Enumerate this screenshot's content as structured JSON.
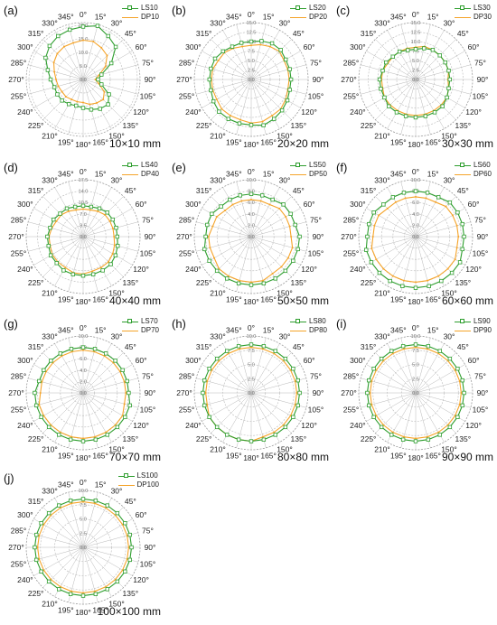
{
  "colors": {
    "ls": "#2e9e2e",
    "dp": "#f5a42a",
    "grid": "#b8b8b8",
    "text": "#222222"
  },
  "angle_labels": [
    "0°",
    "15°",
    "30°",
    "45°",
    "60°",
    "75°",
    "90°",
    "105°",
    "120°",
    "135°",
    "150°",
    "165°",
    "180°",
    "195°",
    "210°",
    "225°",
    "240°",
    "255°",
    "270°",
    "285°",
    "300°",
    "315°",
    "330°",
    "345°"
  ],
  "chart_data": [
    {
      "type": "polar-line",
      "panel_label": "(a)",
      "size_label": "10×10 mm",
      "r_ticks": [
        "0.0",
        "5.0",
        "10.0",
        "15.0",
        "20.0"
      ],
      "rmax": 21,
      "angles_deg": [
        0,
        15,
        30,
        45,
        60,
        75,
        90,
        105,
        120,
        135,
        150,
        165,
        180,
        195,
        210,
        225,
        240,
        255,
        270,
        285,
        300,
        315,
        330,
        345
      ],
      "series": [
        {
          "name": "LS10",
          "values": [
            19.5,
            20.5,
            18.5,
            17,
            12,
            7,
            5.5,
            7,
            11,
            13,
            12.5,
            11.5,
            10.5,
            10,
            10.5,
            11,
            11,
            11,
            12,
            13.5,
            16,
            17.5,
            18.5,
            19
          ]
        },
        {
          "name": "DP10",
          "values": [
            14.5,
            14.5,
            13.5,
            12.5,
            9.5,
            6,
            4.5,
            6,
            9,
            10.5,
            10,
            9.5,
            8.5,
            8.5,
            8.5,
            9,
            9,
            9.5,
            10,
            11,
            12.5,
            13.5,
            14,
            14
          ]
        }
      ]
    },
    {
      "type": "polar-line",
      "panel_label": "(b)",
      "size_label": "20×20 mm",
      "r_ticks": [
        "0.0",
        "2.5",
        "5.0",
        "7.5",
        "10.0",
        "12.5",
        "15.0"
      ],
      "rmax": 15,
      "angles_deg": [
        0,
        15,
        30,
        45,
        60,
        75,
        90,
        105,
        120,
        135,
        150,
        165,
        180,
        195,
        210,
        225,
        240,
        255,
        270,
        285,
        300,
        315,
        330,
        345
      ],
      "series": [
        {
          "name": "LS20",
          "values": [
            10,
            10.5,
            11,
            11,
            10.5,
            10.5,
            10.5,
            10.5,
            11,
            11.5,
            12,
            12.5,
            12,
            12,
            12,
            12,
            11.5,
            11,
            11,
            11,
            11,
            10.5,
            10,
            10
          ]
        },
        {
          "name": "DP20",
          "values": [
            9,
            9.5,
            10,
            10.5,
            10,
            10,
            10,
            10,
            10.5,
            11,
            11,
            11.5,
            11.5,
            11,
            11,
            11,
            10.5,
            10.5,
            10.5,
            10.5,
            10,
            10,
            9.5,
            9
          ]
        }
      ]
    },
    {
      "type": "polar-line",
      "panel_label": "(c)",
      "size_label": "30×30 mm",
      "r_ticks": [
        "0.0",
        "2.5",
        "5.0",
        "7.5",
        "10.0",
        "12.5",
        "15.0"
      ],
      "rmax": 15,
      "angles_deg": [
        0,
        15,
        30,
        45,
        60,
        75,
        90,
        105,
        120,
        135,
        150,
        165,
        180,
        195,
        210,
        225,
        240,
        255,
        270,
        285,
        300,
        315,
        330,
        345
      ],
      "series": [
        {
          "name": "LS30",
          "values": [
            8,
            8.5,
            9,
            9,
            9,
            9,
            9,
            9,
            9.5,
            10,
            10,
            10,
            10,
            10,
            10,
            10,
            9.5,
            9.5,
            9.5,
            9,
            9,
            8.5,
            8.5,
            8
          ]
        },
        {
          "name": "DP30",
          "values": [
            8.5,
            9,
            9,
            9,
            9,
            9,
            8.5,
            9,
            9.5,
            9.5,
            9.5,
            9.5,
            9.5,
            9.5,
            9.5,
            9.5,
            9.5,
            9,
            9,
            9,
            8.5,
            8.5,
            8.5,
            8.5
          ]
        }
      ]
    },
    {
      "type": "polar-line",
      "panel_label": "(d)",
      "size_label": "40×40 mm",
      "r_ticks": [
        "0.0",
        "3.5",
        "7.0",
        "10.5",
        "14.0",
        "17.5"
      ],
      "rmax": 17.5,
      "angles_deg": [
        0,
        15,
        30,
        45,
        60,
        75,
        90,
        105,
        120,
        135,
        150,
        165,
        180,
        195,
        210,
        225,
        240,
        255,
        270,
        285,
        300,
        315,
        330,
        345
      ],
      "series": [
        {
          "name": "LS40",
          "values": [
            9.5,
            9.5,
            10,
            10.5,
            10.5,
            10.5,
            10.5,
            11,
            11.5,
            12,
            12,
            12,
            12,
            12,
            12,
            11.5,
            11.5,
            11,
            11,
            10.5,
            10.5,
            10,
            10,
            9.5
          ]
        },
        {
          "name": "DP40",
          "values": [
            8.5,
            8.5,
            9,
            9.5,
            9.5,
            9.5,
            9.5,
            10,
            10.5,
            11,
            11,
            11,
            11.5,
            11.5,
            11,
            11,
            11,
            10.5,
            10.5,
            10,
            9.5,
            9.5,
            9,
            8.5
          ]
        }
      ]
    },
    {
      "type": "polar-line",
      "panel_label": "(e)",
      "size_label": "50×50 mm",
      "r_ticks": [
        "0.0",
        "2.0",
        "4.0",
        "6.0",
        "8.0",
        "10.0"
      ],
      "rmax": 10,
      "angles_deg": [
        0,
        15,
        30,
        45,
        60,
        75,
        90,
        105,
        120,
        135,
        150,
        165,
        180,
        195,
        210,
        225,
        240,
        255,
        270,
        285,
        300,
        315,
        330,
        345
      ],
      "series": [
        {
          "name": "LS50",
          "values": [
            7.5,
            7.5,
            7.5,
            8,
            8,
            8,
            8.5,
            8.5,
            8.5,
            8.5,
            8.5,
            8.5,
            8.5,
            8.5,
            8.5,
            8.5,
            8.5,
            8.5,
            8,
            8,
            8,
            7.5,
            7.5,
            7.5
          ]
        },
        {
          "name": "DP50",
          "values": [
            6.5,
            6.5,
            6.5,
            7,
            7,
            7,
            7,
            7.5,
            7.5,
            7.5,
            7.5,
            8,
            8,
            8,
            8,
            8,
            7.5,
            7.5,
            7.5,
            7,
            7,
            6.5,
            6.5,
            6.5
          ]
        }
      ]
    },
    {
      "type": "polar-line",
      "panel_label": "(f)",
      "size_label": "60×60 mm",
      "r_ticks": [
        "0.0",
        "2.0",
        "4.0",
        "6.0",
        "8.0",
        "10.0"
      ],
      "rmax": 10,
      "angles_deg": [
        0,
        15,
        30,
        45,
        60,
        75,
        90,
        105,
        120,
        135,
        150,
        165,
        180,
        195,
        210,
        225,
        240,
        255,
        270,
        285,
        300,
        315,
        330,
        345
      ],
      "series": [
        {
          "name": "LS60",
          "values": [
            8,
            8,
            8,
            8.5,
            8.5,
            8.5,
            8.5,
            8.5,
            9,
            9,
            9,
            9,
            9,
            9,
            9,
            9,
            9,
            9,
            8.5,
            8.5,
            8.5,
            8,
            8,
            8
          ]
        },
        {
          "name": "DP60",
          "values": [
            7,
            7,
            7,
            7.5,
            7.5,
            7.5,
            7.5,
            7.5,
            8,
            8,
            8,
            8,
            8,
            8,
            8,
            8,
            8,
            8,
            7.5,
            7.5,
            7.5,
            7,
            7,
            7
          ]
        }
      ]
    },
    {
      "type": "polar-line",
      "panel_label": "(g)",
      "size_label": "70×70 mm",
      "r_ticks": [
        "0.0",
        "2.0",
        "4.0",
        "6.0",
        "8.0",
        "10.0"
      ],
      "rmax": 10,
      "angles_deg": [
        0,
        15,
        30,
        45,
        60,
        75,
        90,
        105,
        120,
        135,
        150,
        165,
        180,
        195,
        210,
        225,
        240,
        255,
        270,
        285,
        300,
        315,
        330,
        345
      ],
      "series": [
        {
          "name": "LS70",
          "values": [
            8,
            8,
            8,
            8,
            8,
            8,
            8,
            8.5,
            8.5,
            8.5,
            8.5,
            8.5,
            8.5,
            8.5,
            8.5,
            8.5,
            8.5,
            8.5,
            8.5,
            8,
            8,
            8,
            8,
            8
          ]
        },
        {
          "name": "DP70",
          "values": [
            7.5,
            7.5,
            7.5,
            7.5,
            7.5,
            7.5,
            7.5,
            7.5,
            8,
            8,
            8,
            8,
            8,
            8,
            8,
            8,
            8,
            8,
            7.5,
            7.5,
            7.5,
            7.5,
            7.5,
            7.5
          ]
        }
      ]
    },
    {
      "type": "polar-line",
      "panel_label": "(h)",
      "size_label": "80×80 mm",
      "r_ticks": [
        "0.0",
        "2.5",
        "5.0",
        "7.5",
        "10.0"
      ],
      "rmax": 10,
      "angles_deg": [
        0,
        15,
        30,
        45,
        60,
        75,
        90,
        105,
        120,
        135,
        150,
        165,
        180,
        195,
        210,
        225,
        240,
        255,
        270,
        285,
        300,
        315,
        330,
        345
      ],
      "series": [
        {
          "name": "LS80",
          "values": [
            8.5,
            8.5,
            8.5,
            8.5,
            8.5,
            8.5,
            8.5,
            8.5,
            8.5,
            8.5,
            8.5,
            8.5,
            8.5,
            8.5,
            8.5,
            8.5,
            8.5,
            8.5,
            8.5,
            8.5,
            8.5,
            8.5,
            8.5,
            8.5
          ]
        },
        {
          "name": "DP80",
          "values": [
            8,
            8,
            8,
            8,
            8,
            8,
            8,
            8,
            8,
            8,
            8,
            8,
            8.5,
            8.5,
            8.5,
            8.5,
            8.5,
            8,
            8,
            8,
            8,
            8,
            8,
            8
          ]
        }
      ]
    },
    {
      "type": "polar-line",
      "panel_label": "(i)",
      "size_label": "90×90 mm",
      "r_ticks": [
        "0.0",
        "2.5",
        "5.0",
        "7.5",
        "10.0"
      ],
      "rmax": 10,
      "angles_deg": [
        0,
        15,
        30,
        45,
        60,
        75,
        90,
        105,
        120,
        135,
        150,
        165,
        180,
        195,
        210,
        225,
        240,
        255,
        270,
        285,
        300,
        315,
        330,
        345
      ],
      "series": [
        {
          "name": "LS90",
          "values": [
            8.5,
            8.5,
            8.5,
            8.5,
            8.5,
            8.5,
            8.5,
            8.5,
            8.5,
            8.5,
            8.5,
            8.5,
            8.5,
            8.5,
            8.5,
            8.5,
            8.5,
            8.5,
            8.5,
            8.5,
            8.5,
            8.5,
            8.5,
            8.5
          ]
        },
        {
          "name": "DP90",
          "values": [
            8,
            8,
            8,
            8,
            8,
            8,
            8,
            8,
            8,
            8,
            8,
            8,
            8,
            8,
            8,
            8,
            8,
            8,
            8,
            8,
            8,
            8,
            8,
            8
          ]
        }
      ]
    },
    {
      "type": "polar-line",
      "panel_label": "(j)",
      "size_label": "100×100 mm",
      "r_ticks": [
        "0.0",
        "2.5",
        "5.0",
        "7.5",
        "10.0"
      ],
      "rmax": 10,
      "angles_deg": [
        0,
        15,
        30,
        45,
        60,
        75,
        90,
        105,
        120,
        135,
        150,
        165,
        180,
        195,
        210,
        225,
        240,
        255,
        270,
        285,
        300,
        315,
        330,
        345
      ],
      "series": [
        {
          "name": "LS100",
          "values": [
            8.5,
            8.5,
            8.5,
            8.5,
            8.5,
            8.5,
            8.5,
            8.5,
            8.5,
            8.5,
            8.5,
            8.5,
            8.5,
            8.5,
            8.5,
            8.5,
            8.5,
            8.5,
            8.5,
            8.5,
            8.5,
            8.5,
            8.5,
            8.5
          ]
        },
        {
          "name": "DP100",
          "values": [
            8,
            8,
            8,
            8,
            8,
            8,
            8,
            8,
            8,
            8,
            8,
            8,
            8,
            8,
            8,
            8,
            8,
            8,
            8,
            8,
            8,
            8,
            8,
            8
          ]
        }
      ]
    }
  ]
}
